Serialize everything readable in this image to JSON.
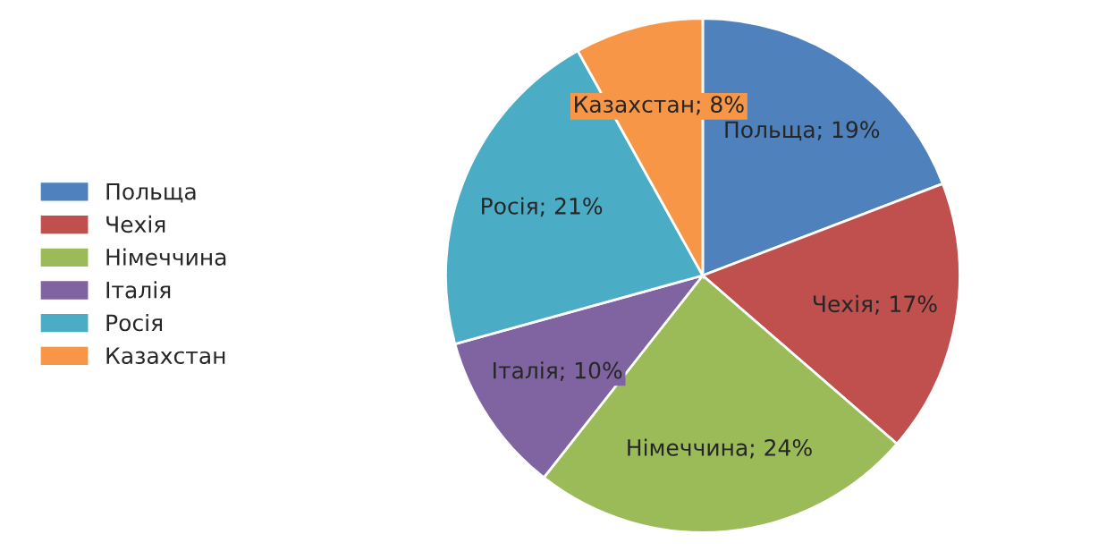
{
  "chart_data": {
    "type": "pie",
    "categories": [
      "Польща",
      "Чехія",
      "Німеччина",
      "Італія",
      "Росія",
      "Казахстан"
    ],
    "values": [
      19,
      17,
      24,
      10,
      21,
      8
    ],
    "colors": [
      "#4f81bd",
      "#c0504d",
      "#9bbb59",
      "#8064a2",
      "#4bacc6",
      "#f79646"
    ],
    "value_labels": [
      "Польща; 19%",
      "Чехія; 17%",
      "Німеччина; 24%",
      "Італія; 10%",
      "Росія; 21%",
      "Казахстан; 8%"
    ],
    "legend": "left"
  }
}
